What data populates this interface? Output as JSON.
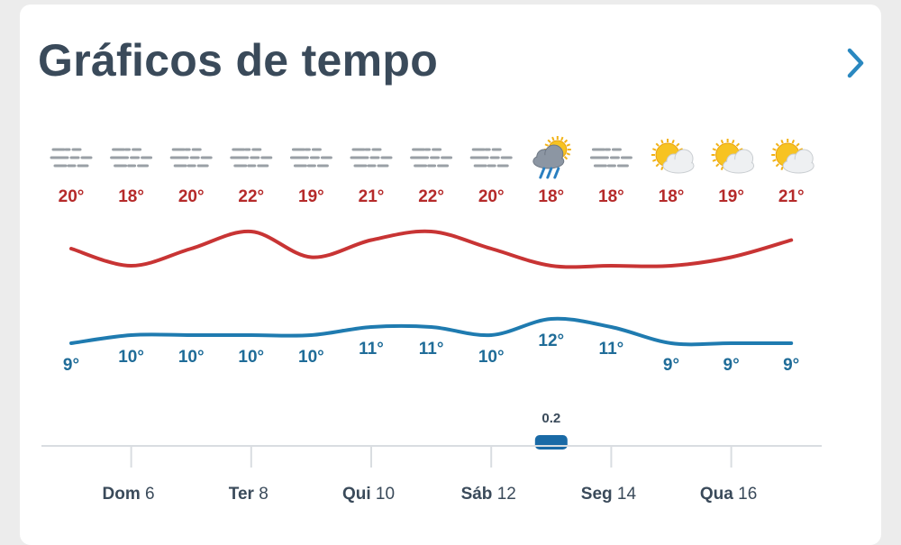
{
  "header": {
    "title": "Gráficos de tempo",
    "next_icon": "chevron-right-icon"
  },
  "colors": {
    "high": "#c83434",
    "low": "#1f7bb0",
    "precip": "#1a6aa6",
    "text": "#3a4a5a"
  },
  "chart_data": {
    "type": "line",
    "days": [
      {
        "weekday": "Dom",
        "date": "6"
      },
      {
        "weekday": "Ter",
        "date": "8"
      },
      {
        "weekday": "Qui",
        "date": "10"
      },
      {
        "weekday": "Sáb",
        "date": "12"
      },
      {
        "weekday": "Seg",
        "date": "14"
      },
      {
        "weekday": "Qua",
        "date": "16"
      }
    ],
    "icons": [
      "fog-icon",
      "fog-icon",
      "fog-icon",
      "fog-icon",
      "fog-icon",
      "fog-icon",
      "fog-icon",
      "fog-icon",
      "sun-rain-cloud-icon",
      "fog-icon",
      "partly-sunny-icon",
      "partly-sunny-icon",
      "partly-sunny-icon"
    ],
    "series": [
      {
        "values": [
          20,
          18,
          20,
          22,
          19,
          21,
          22,
          20,
          18,
          18,
          18,
          19,
          21
        ],
        "labels": [
          "20°",
          "18°",
          "20°",
          "22°",
          "19°",
          "21°",
          "22°",
          "20°",
          "18°",
          "18°",
          "18°",
          "19°",
          "21°"
        ]
      },
      {
        "values": [
          9,
          10,
          10,
          10,
          10,
          11,
          11,
          10,
          12,
          11,
          9,
          9,
          9
        ],
        "labels": [
          "9°",
          "10°",
          "10°",
          "10°",
          "10°",
          "11°",
          "11°",
          "10°",
          "12°",
          "11°",
          "9°",
          "9°",
          "9°"
        ]
      }
    ],
    "precipitation": [
      {
        "index": 8,
        "value": 0.2,
        "label": "0.2"
      }
    ]
  }
}
